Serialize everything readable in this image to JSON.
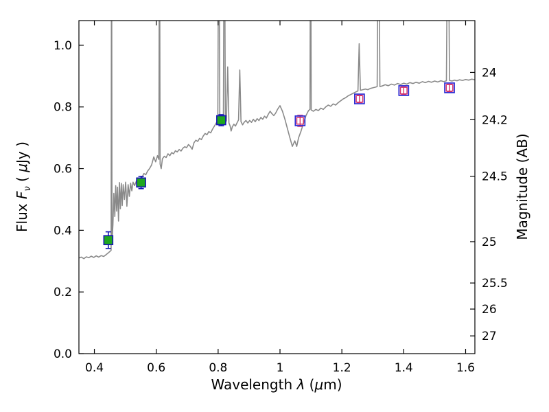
{
  "figure": {
    "background": "#ffffff",
    "frame_color": "#000000",
    "tick_color": "#000000",
    "tick_label_size": 17,
    "axis_label_size": 20
  },
  "labels": {
    "xlabel_parts": [
      {
        "t": "Wavelength "
      },
      {
        "t": "λ",
        "i": true
      },
      {
        "t": " ("
      },
      {
        "t": "μ",
        "i": true
      },
      {
        "t": "m)"
      }
    ],
    "ylabel_left_parts": [
      {
        "t": "Flux "
      },
      {
        "t": "F",
        "i": true
      },
      {
        "t": "ν",
        "i": true,
        "sub": true
      },
      {
        "t": " ( "
      },
      {
        "t": "μ",
        "i": true
      },
      {
        "t": "Jy )"
      }
    ],
    "ylabel_right": "Magnitude (AB)"
  },
  "chart_data": {
    "type": "line",
    "title": "",
    "xlabel": "Wavelength λ (μm)",
    "ylabel": "Flux Fν (μJy)",
    "ylabel_right": "Magnitude (AB)",
    "xlim": [
      0.35,
      1.63
    ],
    "ylim": [
      0.0,
      1.08
    ],
    "grid": false,
    "legend": "none",
    "x_ticks": [
      0.4,
      0.6,
      0.8,
      1.0,
      1.2,
      1.4,
      1.6
    ],
    "x_tick_labels": [
      "0.4",
      "0.6",
      "0.8",
      "1",
      "1.2",
      "1.4",
      "1.6"
    ],
    "y_ticks": [
      0.0,
      0.2,
      0.4,
      0.6,
      0.8,
      1.0
    ],
    "y_tick_labels": [
      "0.0",
      "0.2",
      "0.4",
      "0.6",
      "0.8",
      "1.0"
    ],
    "right_axis": {
      "label": "Magnitude (AB)",
      "tick_magnitudes": [
        24,
        24.2,
        24.5,
        25,
        25.5,
        26,
        27
      ],
      "tick_labels": [
        "24",
        "24.2",
        "24.5",
        "25",
        "25.5",
        "26",
        "27"
      ],
      "ab_zeropoint": 23.9
    },
    "series": [
      {
        "name": "model-spectrum",
        "type": "line",
        "color": "#8a8a8a",
        "linewidth": 1.6,
        "points": [
          [
            0.35,
            0.31
          ],
          [
            0.358,
            0.313
          ],
          [
            0.366,
            0.308
          ],
          [
            0.374,
            0.314
          ],
          [
            0.382,
            0.311
          ],
          [
            0.39,
            0.316
          ],
          [
            0.398,
            0.312
          ],
          [
            0.406,
            0.317
          ],
          [
            0.414,
            0.313
          ],
          [
            0.422,
            0.318
          ],
          [
            0.43,
            0.315
          ],
          [
            0.438,
            0.321
          ],
          [
            0.445,
            0.327
          ],
          [
            0.451,
            0.332
          ],
          [
            0.454,
            0.335
          ],
          [
            0.4555,
            1.6
          ],
          [
            0.457,
            0.36
          ],
          [
            0.46,
            0.42
          ],
          [
            0.463,
            0.52
          ],
          [
            0.466,
            0.445
          ],
          [
            0.469,
            0.545
          ],
          [
            0.472,
            0.462
          ],
          [
            0.475,
            0.54
          ],
          [
            0.478,
            0.43
          ],
          [
            0.481,
            0.555
          ],
          [
            0.484,
            0.47
          ],
          [
            0.487,
            0.552
          ],
          [
            0.49,
            0.48
          ],
          [
            0.493,
            0.548
          ],
          [
            0.497,
            0.5
          ],
          [
            0.501,
            0.556
          ],
          [
            0.505,
            0.478
          ],
          [
            0.509,
            0.548
          ],
          [
            0.513,
            0.51
          ],
          [
            0.517,
            0.553
          ],
          [
            0.521,
            0.528
          ],
          [
            0.525,
            0.556
          ],
          [
            0.53,
            0.545
          ],
          [
            0.536,
            0.56
          ],
          [
            0.542,
            0.556
          ],
          [
            0.548,
            0.566
          ],
          [
            0.554,
            0.572
          ],
          [
            0.56,
            0.584
          ],
          [
            0.566,
            0.58
          ],
          [
            0.572,
            0.592
          ],
          [
            0.578,
            0.6
          ],
          [
            0.585,
            0.612
          ],
          [
            0.592,
            0.638
          ],
          [
            0.598,
            0.622
          ],
          [
            0.604,
            0.642
          ],
          [
            0.6085,
            0.63
          ],
          [
            0.6105,
            1.6
          ],
          [
            0.6125,
            0.615
          ],
          [
            0.616,
            0.6
          ],
          [
            0.62,
            0.632
          ],
          [
            0.626,
            0.64
          ],
          [
            0.632,
            0.636
          ],
          [
            0.638,
            0.648
          ],
          [
            0.644,
            0.642
          ],
          [
            0.65,
            0.652
          ],
          [
            0.656,
            0.648
          ],
          [
            0.662,
            0.658
          ],
          [
            0.668,
            0.654
          ],
          [
            0.674,
            0.662
          ],
          [
            0.68,
            0.657
          ],
          [
            0.686,
            0.666
          ],
          [
            0.692,
            0.671
          ],
          [
            0.698,
            0.668
          ],
          [
            0.704,
            0.678
          ],
          [
            0.71,
            0.672
          ],
          [
            0.716,
            0.663
          ],
          [
            0.722,
            0.684
          ],
          [
            0.728,
            0.692
          ],
          [
            0.734,
            0.688
          ],
          [
            0.74,
            0.698
          ],
          [
            0.746,
            0.694
          ],
          [
            0.752,
            0.706
          ],
          [
            0.758,
            0.714
          ],
          [
            0.764,
            0.71
          ],
          [
            0.77,
            0.72
          ],
          [
            0.776,
            0.716
          ],
          [
            0.782,
            0.728
          ],
          [
            0.788,
            0.738
          ],
          [
            0.794,
            0.748
          ],
          [
            0.799,
            0.756
          ],
          [
            0.802,
            1.6
          ],
          [
            0.8055,
            0.762
          ],
          [
            0.809,
            0.752
          ],
          [
            0.813,
            0.758
          ],
          [
            0.817,
            0.75
          ],
          [
            0.82,
            1.6
          ],
          [
            0.8235,
            0.748
          ],
          [
            0.827,
            0.756
          ],
          [
            0.831,
            0.93
          ],
          [
            0.835,
            0.748
          ],
          [
            0.839,
            0.738
          ],
          [
            0.842,
            0.722
          ],
          [
            0.846,
            0.736
          ],
          [
            0.851,
            0.744
          ],
          [
            0.856,
            0.738
          ],
          [
            0.861,
            0.748
          ],
          [
            0.866,
            0.758
          ],
          [
            0.87,
            0.92
          ],
          [
            0.874,
            0.752
          ],
          [
            0.879,
            0.742
          ],
          [
            0.884,
            0.75
          ],
          [
            0.89,
            0.756
          ],
          [
            0.896,
            0.748
          ],
          [
            0.902,
            0.756
          ],
          [
            0.908,
            0.75
          ],
          [
            0.914,
            0.76
          ],
          [
            0.92,
            0.752
          ],
          [
            0.926,
            0.762
          ],
          [
            0.932,
            0.756
          ],
          [
            0.938,
            0.766
          ],
          [
            0.944,
            0.76
          ],
          [
            0.95,
            0.77
          ],
          [
            0.956,
            0.764
          ],
          [
            0.962,
            0.776
          ],
          [
            0.968,
            0.786
          ],
          [
            0.974,
            0.778
          ],
          [
            0.98,
            0.772
          ],
          [
            0.986,
            0.78
          ],
          [
            0.992,
            0.792
          ],
          [
            1.0,
            0.804
          ],
          [
            1.008,
            0.786
          ],
          [
            1.016,
            0.76
          ],
          [
            1.024,
            0.73
          ],
          [
            1.032,
            0.7
          ],
          [
            1.04,
            0.672
          ],
          [
            1.048,
            0.69
          ],
          [
            1.054,
            0.672
          ],
          [
            1.06,
            0.7
          ],
          [
            1.068,
            0.722
          ],
          [
            1.076,
            0.748
          ],
          [
            1.084,
            0.772
          ],
          [
            1.092,
            0.788
          ],
          [
            1.097,
            0.792
          ],
          [
            1.099,
            1.6
          ],
          [
            1.101,
            0.79
          ],
          [
            1.108,
            0.786
          ],
          [
            1.116,
            0.792
          ],
          [
            1.124,
            0.788
          ],
          [
            1.132,
            0.796
          ],
          [
            1.14,
            0.792
          ],
          [
            1.148,
            0.8
          ],
          [
            1.156,
            0.806
          ],
          [
            1.164,
            0.802
          ],
          [
            1.172,
            0.81
          ],
          [
            1.18,
            0.806
          ],
          [
            1.188,
            0.814
          ],
          [
            1.196,
            0.82
          ],
          [
            1.204,
            0.826
          ],
          [
            1.212,
            0.83
          ],
          [
            1.22,
            0.836
          ],
          [
            1.228,
            0.84
          ],
          [
            1.236,
            0.844
          ],
          [
            1.244,
            0.848
          ],
          [
            1.252,
            0.852
          ],
          [
            1.256,
            1.005
          ],
          [
            1.26,
            0.854
          ],
          [
            1.268,
            0.856
          ],
          [
            1.276,
            0.858
          ],
          [
            1.284,
            0.856
          ],
          [
            1.292,
            0.86
          ],
          [
            1.3,
            0.862
          ],
          [
            1.308,
            0.864
          ],
          [
            1.314,
            0.866
          ],
          [
            1.3185,
            1.6
          ],
          [
            1.323,
            0.866
          ],
          [
            1.33,
            0.868
          ],
          [
            1.34,
            0.872
          ],
          [
            1.35,
            0.869
          ],
          [
            1.36,
            0.874
          ],
          [
            1.37,
            0.871
          ],
          [
            1.38,
            0.876
          ],
          [
            1.39,
            0.873
          ],
          [
            1.4,
            0.877
          ],
          [
            1.41,
            0.874
          ],
          [
            1.42,
            0.879
          ],
          [
            1.43,
            0.876
          ],
          [
            1.44,
            0.88
          ],
          [
            1.45,
            0.877
          ],
          [
            1.46,
            0.882
          ],
          [
            1.47,
            0.879
          ],
          [
            1.48,
            0.883
          ],
          [
            1.49,
            0.88
          ],
          [
            1.5,
            0.884
          ],
          [
            1.51,
            0.881
          ],
          [
            1.52,
            0.885
          ],
          [
            1.53,
            0.882
          ],
          [
            1.538,
            0.885
          ],
          [
            1.543,
            1.6
          ],
          [
            1.548,
            0.886
          ],
          [
            1.556,
            0.884
          ],
          [
            1.564,
            0.887
          ],
          [
            1.572,
            0.885
          ],
          [
            1.58,
            0.888
          ],
          [
            1.59,
            0.886
          ],
          [
            1.6,
            0.889
          ],
          [
            1.61,
            0.887
          ],
          [
            1.62,
            0.89
          ],
          [
            1.63,
            0.888
          ]
        ]
      },
      {
        "name": "observed-photometry",
        "type": "scatter",
        "marker": "filled-square",
        "fill": "#1fa71f",
        "edge": "#1414b4",
        "x": [
          0.445,
          0.551,
          0.81
        ],
        "y": [
          0.368,
          0.555,
          0.757
        ],
        "yerr": [
          0.027,
          0.02,
          0.018
        ]
      },
      {
        "name": "model-photometry",
        "type": "scatter",
        "marker": "open-square",
        "edge_outer": "#2a2ad4",
        "edge_inner": "#d6336c",
        "x": [
          1.065,
          1.257,
          1.4,
          1.548
        ],
        "y": [
          0.755,
          0.826,
          0.853,
          0.862
        ],
        "yerr": [
          0.018,
          0.012,
          0.012,
          0.012
        ]
      }
    ]
  }
}
